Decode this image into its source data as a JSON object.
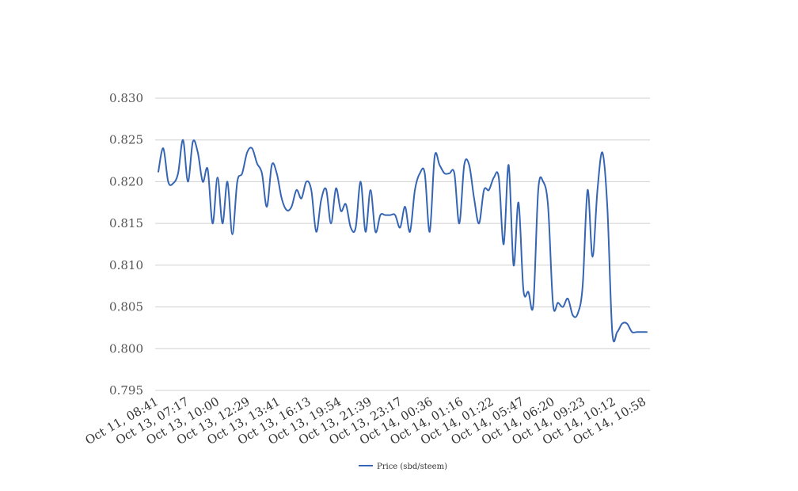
{
  "chart_data": {
    "type": "line",
    "title": "",
    "xlabel": "",
    "ylabel": "",
    "ylim": [
      0.795,
      0.83
    ],
    "yticks": [
      "0.795",
      "0.800",
      "0.805",
      "0.810",
      "0.815",
      "0.820",
      "0.825",
      "0.830"
    ],
    "xtick_labels": [
      "Oct 11, 08:41",
      "Oct 13, 07:17",
      "Oct 13, 10:00",
      "Oct 13, 12:29",
      "Oct 13, 13:41",
      "Oct 13, 16:13",
      "Oct 13, 19:54",
      "Oct 13, 21:39",
      "Oct 13, 23:17",
      "Oct 14, 00:36",
      "Oct 14, 01:16",
      "Oct 14, 01:22",
      "Oct 14, 05:47",
      "Oct 14, 06:20",
      "Oct 14, 09:23",
      "Oct 14, 10:12",
      "Oct 14, 10:58"
    ],
    "grid": true,
    "legend_position": "bottom-center",
    "colors": {
      "series": "#3565b3",
      "grid": "#d0d0d0"
    },
    "series": [
      {
        "name": "Price (sbd/steem)",
        "values": [
          0.8212,
          0.824,
          0.82,
          0.8198,
          0.821,
          0.825,
          0.82,
          0.8248,
          0.8235,
          0.82,
          0.8215,
          0.815,
          0.8205,
          0.815,
          0.82,
          0.8137,
          0.82,
          0.821,
          0.8235,
          0.824,
          0.8222,
          0.821,
          0.817,
          0.822,
          0.821,
          0.818,
          0.8166,
          0.817,
          0.819,
          0.818,
          0.82,
          0.819,
          0.814,
          0.8178,
          0.8191,
          0.815,
          0.8192,
          0.8165,
          0.8173,
          0.8145,
          0.8145,
          0.82,
          0.814,
          0.819,
          0.814,
          0.816,
          0.816,
          0.816,
          0.816,
          0.8145,
          0.817,
          0.814,
          0.819,
          0.821,
          0.821,
          0.814,
          0.823,
          0.822,
          0.821,
          0.821,
          0.821,
          0.815,
          0.822,
          0.822,
          0.818,
          0.815,
          0.819,
          0.819,
          0.8205,
          0.8205,
          0.8125,
          0.822,
          0.81,
          0.8175,
          0.807,
          0.8068,
          0.8053,
          0.819,
          0.82,
          0.817,
          0.8053,
          0.8055,
          0.805,
          0.806,
          0.804,
          0.8042,
          0.8075,
          0.819,
          0.811,
          0.819,
          0.8235,
          0.817,
          0.802,
          0.802,
          0.803,
          0.803,
          0.802,
          0.802,
          0.802,
          0.802
        ]
      }
    ]
  }
}
